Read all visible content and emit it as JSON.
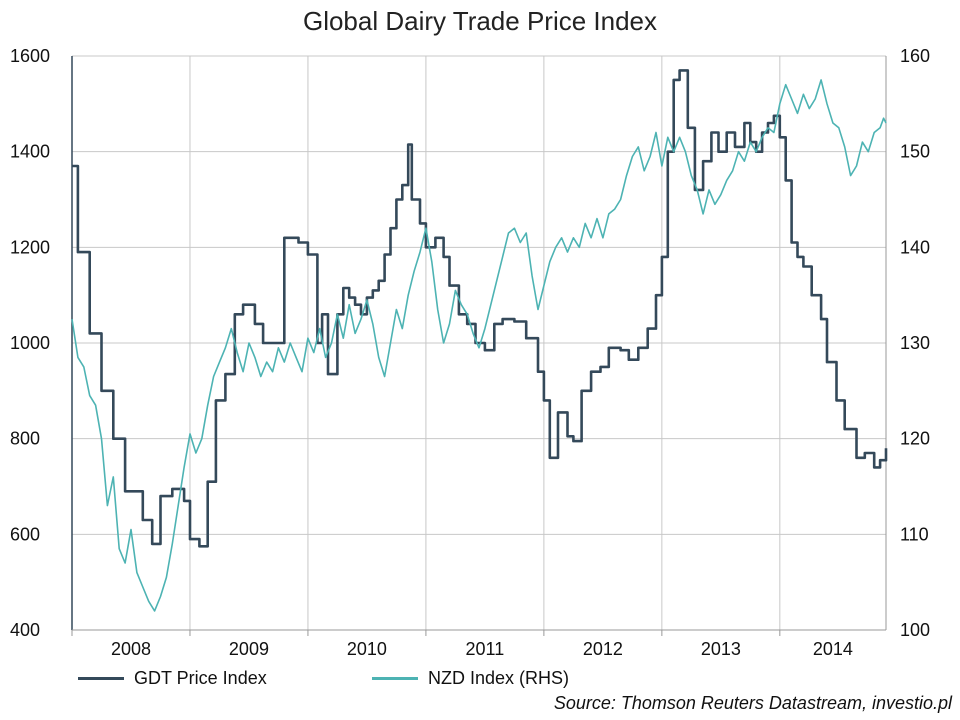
{
  "colors": {
    "gdt": "#34495a",
    "nzd": "#4db3b3",
    "grid": "#c8c8c8",
    "axis": "#999999"
  },
  "footer": {
    "source": "Source: Thomson Reuters Datastream, investio.pl"
  },
  "chart_data": {
    "type": "line",
    "title": "Global Dairy Trade Price Index",
    "grid": true,
    "legend_position": "bottom-left",
    "x_tick_labels": [
      "2008",
      "2009",
      "2010",
      "2011",
      "2012",
      "2013",
      "2014"
    ],
    "x_range": [
      2008.0,
      2014.9
    ],
    "y_left": {
      "range": [
        400,
        1600
      ],
      "ticks": [
        400,
        600,
        800,
        1000,
        1200,
        1400,
        1600
      ]
    },
    "y_right": {
      "range": [
        100,
        160
      ],
      "ticks": [
        100,
        110,
        120,
        130,
        140,
        150,
        160
      ]
    },
    "series": [
      {
        "name": "GDT Price Index",
        "axis": "left",
        "color": "#34495a",
        "style": "step",
        "points": [
          [
            2008.0,
            1370
          ],
          [
            2008.05,
            1190
          ],
          [
            2008.15,
            1020
          ],
          [
            2008.25,
            900
          ],
          [
            2008.35,
            800
          ],
          [
            2008.45,
            690
          ],
          [
            2008.6,
            630
          ],
          [
            2008.68,
            580
          ],
          [
            2008.75,
            680
          ],
          [
            2008.85,
            695
          ],
          [
            2008.95,
            670
          ],
          [
            2009.0,
            590
          ],
          [
            2009.08,
            575
          ],
          [
            2009.15,
            710
          ],
          [
            2009.22,
            880
          ],
          [
            2009.3,
            935
          ],
          [
            2009.38,
            1060
          ],
          [
            2009.45,
            1080
          ],
          [
            2009.55,
            1040
          ],
          [
            2009.62,
            1000
          ],
          [
            2009.75,
            1000
          ],
          [
            2009.8,
            1220
          ],
          [
            2009.92,
            1210
          ],
          [
            2010.0,
            1185
          ],
          [
            2010.08,
            1000
          ],
          [
            2010.12,
            1060
          ],
          [
            2010.17,
            935
          ],
          [
            2010.25,
            1060
          ],
          [
            2010.3,
            1115
          ],
          [
            2010.35,
            1095
          ],
          [
            2010.4,
            1080
          ],
          [
            2010.45,
            1060
          ],
          [
            2010.5,
            1095
          ],
          [
            2010.55,
            1110
          ],
          [
            2010.6,
            1130
          ],
          [
            2010.65,
            1185
          ],
          [
            2010.7,
            1240
          ],
          [
            2010.75,
            1300
          ],
          [
            2010.8,
            1330
          ],
          [
            2010.85,
            1415
          ],
          [
            2010.88,
            1300
          ],
          [
            2010.95,
            1250
          ],
          [
            2011.0,
            1200
          ],
          [
            2011.08,
            1220
          ],
          [
            2011.15,
            1180
          ],
          [
            2011.2,
            1120
          ],
          [
            2011.28,
            1060
          ],
          [
            2011.35,
            1040
          ],
          [
            2011.42,
            1000
          ],
          [
            2011.5,
            985
          ],
          [
            2011.58,
            1040
          ],
          [
            2011.65,
            1050
          ],
          [
            2011.75,
            1045
          ],
          [
            2011.85,
            1010
          ],
          [
            2011.95,
            940
          ],
          [
            2012.0,
            880
          ],
          [
            2012.05,
            760
          ],
          [
            2012.12,
            855
          ],
          [
            2012.2,
            805
          ],
          [
            2012.25,
            795
          ],
          [
            2012.32,
            900
          ],
          [
            2012.4,
            940
          ],
          [
            2012.48,
            950
          ],
          [
            2012.55,
            990
          ],
          [
            2012.65,
            985
          ],
          [
            2012.72,
            965
          ],
          [
            2012.8,
            990
          ],
          [
            2012.88,
            1030
          ],
          [
            2012.95,
            1100
          ],
          [
            2013.0,
            1180
          ],
          [
            2013.05,
            1400
          ],
          [
            2013.1,
            1550
          ],
          [
            2013.15,
            1570
          ],
          [
            2013.22,
            1450
          ],
          [
            2013.28,
            1320
          ],
          [
            2013.35,
            1380
          ],
          [
            2013.42,
            1440
          ],
          [
            2013.48,
            1400
          ],
          [
            2013.55,
            1440
          ],
          [
            2013.62,
            1410
          ],
          [
            2013.7,
            1460
          ],
          [
            2013.75,
            1420
          ],
          [
            2013.8,
            1400
          ],
          [
            2013.85,
            1440
          ],
          [
            2013.9,
            1460
          ],
          [
            2013.95,
            1475
          ],
          [
            2014.0,
            1430
          ],
          [
            2014.05,
            1340
          ],
          [
            2014.1,
            1210
          ],
          [
            2014.15,
            1180
          ],
          [
            2014.2,
            1160
          ],
          [
            2014.27,
            1100
          ],
          [
            2014.35,
            1050
          ],
          [
            2014.4,
            960
          ],
          [
            2014.48,
            880
          ],
          [
            2014.55,
            820
          ],
          [
            2014.65,
            760
          ],
          [
            2014.72,
            770
          ],
          [
            2014.8,
            740
          ],
          [
            2014.85,
            755
          ],
          [
            2014.9,
            780
          ]
        ]
      },
      {
        "name": "NZD Index (RHS)",
        "axis": "right",
        "color": "#4db3b3",
        "style": "line",
        "points": [
          [
            2008.0,
            132.5
          ],
          [
            2008.05,
            128.5
          ],
          [
            2008.1,
            127.5
          ],
          [
            2008.15,
            124.5
          ],
          [
            2008.2,
            123.5
          ],
          [
            2008.25,
            120.0
          ],
          [
            2008.3,
            113.0
          ],
          [
            2008.35,
            116.0
          ],
          [
            2008.4,
            108.5
          ],
          [
            2008.45,
            107.0
          ],
          [
            2008.5,
            110.5
          ],
          [
            2008.55,
            106.0
          ],
          [
            2008.6,
            104.5
          ],
          [
            2008.65,
            103.0
          ],
          [
            2008.7,
            102.0
          ],
          [
            2008.75,
            103.5
          ],
          [
            2008.8,
            105.5
          ],
          [
            2008.85,
            109.0
          ],
          [
            2008.9,
            113.0
          ],
          [
            2008.95,
            117.0
          ],
          [
            2009.0,
            120.5
          ],
          [
            2009.05,
            118.5
          ],
          [
            2009.1,
            120.0
          ],
          [
            2009.15,
            123.5
          ],
          [
            2009.2,
            126.5
          ],
          [
            2009.25,
            128.0
          ],
          [
            2009.3,
            129.5
          ],
          [
            2009.35,
            131.5
          ],
          [
            2009.4,
            129.0
          ],
          [
            2009.45,
            127.0
          ],
          [
            2009.5,
            130.0
          ],
          [
            2009.55,
            128.5
          ],
          [
            2009.6,
            126.5
          ],
          [
            2009.65,
            128.0
          ],
          [
            2009.7,
            127.0
          ],
          [
            2009.75,
            129.5
          ],
          [
            2009.8,
            128.0
          ],
          [
            2009.85,
            130.0
          ],
          [
            2009.9,
            128.5
          ],
          [
            2009.95,
            127.0
          ],
          [
            2010.0,
            130.5
          ],
          [
            2010.05,
            129.0
          ],
          [
            2010.1,
            131.5
          ],
          [
            2010.15,
            128.5
          ],
          [
            2010.2,
            130.0
          ],
          [
            2010.25,
            133.0
          ],
          [
            2010.3,
            130.5
          ],
          [
            2010.35,
            134.0
          ],
          [
            2010.4,
            131.0
          ],
          [
            2010.45,
            132.5
          ],
          [
            2010.5,
            134.5
          ],
          [
            2010.55,
            132.0
          ],
          [
            2010.6,
            128.5
          ],
          [
            2010.65,
            126.5
          ],
          [
            2010.7,
            130.0
          ],
          [
            2010.75,
            133.5
          ],
          [
            2010.8,
            131.5
          ],
          [
            2010.85,
            135.0
          ],
          [
            2010.9,
            137.5
          ],
          [
            2010.95,
            139.5
          ],
          [
            2011.0,
            142.0
          ],
          [
            2011.05,
            138.5
          ],
          [
            2011.1,
            133.5
          ],
          [
            2011.15,
            130.0
          ],
          [
            2011.2,
            132.0
          ],
          [
            2011.25,
            135.5
          ],
          [
            2011.3,
            134.0
          ],
          [
            2011.35,
            133.0
          ],
          [
            2011.4,
            131.0
          ],
          [
            2011.45,
            129.5
          ],
          [
            2011.5,
            131.5
          ],
          [
            2011.55,
            134.0
          ],
          [
            2011.6,
            136.5
          ],
          [
            2011.65,
            139.0
          ],
          [
            2011.7,
            141.5
          ],
          [
            2011.75,
            142.0
          ],
          [
            2011.8,
            140.5
          ],
          [
            2011.85,
            141.5
          ],
          [
            2011.9,
            137.0
          ],
          [
            2011.95,
            133.5
          ],
          [
            2012.0,
            136.0
          ],
          [
            2012.05,
            138.5
          ],
          [
            2012.1,
            140.0
          ],
          [
            2012.15,
            141.0
          ],
          [
            2012.2,
            139.5
          ],
          [
            2012.25,
            141.0
          ],
          [
            2012.3,
            140.0
          ],
          [
            2012.35,
            142.5
          ],
          [
            2012.4,
            141.0
          ],
          [
            2012.45,
            143.0
          ],
          [
            2012.5,
            141.0
          ],
          [
            2012.55,
            143.5
          ],
          [
            2012.6,
            144.0
          ],
          [
            2012.65,
            145.0
          ],
          [
            2012.7,
            147.5
          ],
          [
            2012.75,
            149.5
          ],
          [
            2012.8,
            150.5
          ],
          [
            2012.85,
            148.0
          ],
          [
            2012.9,
            149.5
          ],
          [
            2012.95,
            152.0
          ],
          [
            2013.0,
            148.5
          ],
          [
            2013.05,
            151.5
          ],
          [
            2013.1,
            150.0
          ],
          [
            2013.15,
            151.5
          ],
          [
            2013.2,
            150.0
          ],
          [
            2013.25,
            147.5
          ],
          [
            2013.3,
            146.0
          ],
          [
            2013.35,
            143.5
          ],
          [
            2013.4,
            146.0
          ],
          [
            2013.45,
            144.5
          ],
          [
            2013.5,
            145.5
          ],
          [
            2013.55,
            147.0
          ],
          [
            2013.6,
            148.0
          ],
          [
            2013.65,
            150.0
          ],
          [
            2013.7,
            149.0
          ],
          [
            2013.75,
            151.0
          ],
          [
            2013.8,
            150.0
          ],
          [
            2013.85,
            151.5
          ],
          [
            2013.9,
            152.5
          ],
          [
            2013.95,
            152.0
          ],
          [
            2014.0,
            155.0
          ],
          [
            2014.05,
            157.0
          ],
          [
            2014.1,
            155.5
          ],
          [
            2014.15,
            154.0
          ],
          [
            2014.2,
            156.0
          ],
          [
            2014.25,
            154.5
          ],
          [
            2014.3,
            155.5
          ],
          [
            2014.35,
            157.5
          ],
          [
            2014.4,
            155.0
          ],
          [
            2014.45,
            153.0
          ],
          [
            2014.5,
            152.5
          ],
          [
            2014.55,
            150.5
          ],
          [
            2014.6,
            147.5
          ],
          [
            2014.65,
            148.5
          ],
          [
            2014.7,
            151.0
          ],
          [
            2014.75,
            150.0
          ],
          [
            2014.8,
            152.0
          ],
          [
            2014.85,
            152.5
          ],
          [
            2014.88,
            153.5
          ],
          [
            2014.9,
            153.0
          ]
        ]
      }
    ]
  }
}
